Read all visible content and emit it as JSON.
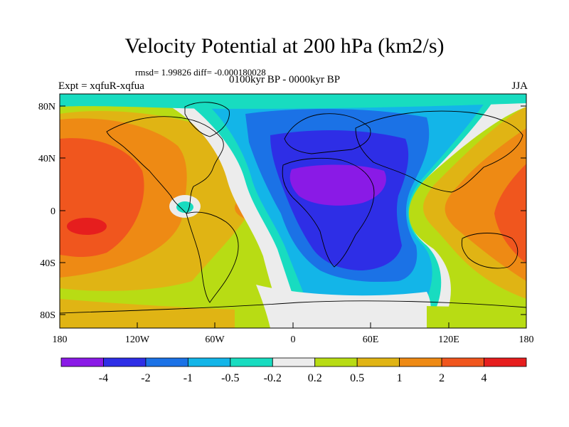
{
  "title": "Velocity Potential at 200 hPa (km2/s)",
  "stats_line": "rmsd= 1.99826 diff= -0.000180028",
  "period": "0100kyr BP - 0000kyr BP",
  "experiment": "Expt = xqfuR-xqfua",
  "season": "JJA",
  "axes": {
    "x_ticks": [
      "180",
      "120W",
      "60W",
      "0",
      "60E",
      "120E",
      "180"
    ],
    "y_ticks": [
      "80N",
      "40N",
      "0",
      "40S",
      "80S"
    ]
  },
  "colorbar": {
    "colors": [
      "#8a1ae6",
      "#2e2ee6",
      "#1b72e6",
      "#13b5e8",
      "#18dcc0",
      "#ececec",
      "#b8dc14",
      "#e0b414",
      "#ee8a14",
      "#f0561e",
      "#e61e1e"
    ],
    "labels": [
      "-4",
      "-2",
      "-1",
      "-0.5",
      "-0.2",
      "0.2",
      "0.5",
      "1",
      "2",
      "4"
    ]
  },
  "palette": {
    "ocean_base": "#b8dc14",
    "continent_line": "#000000"
  }
}
